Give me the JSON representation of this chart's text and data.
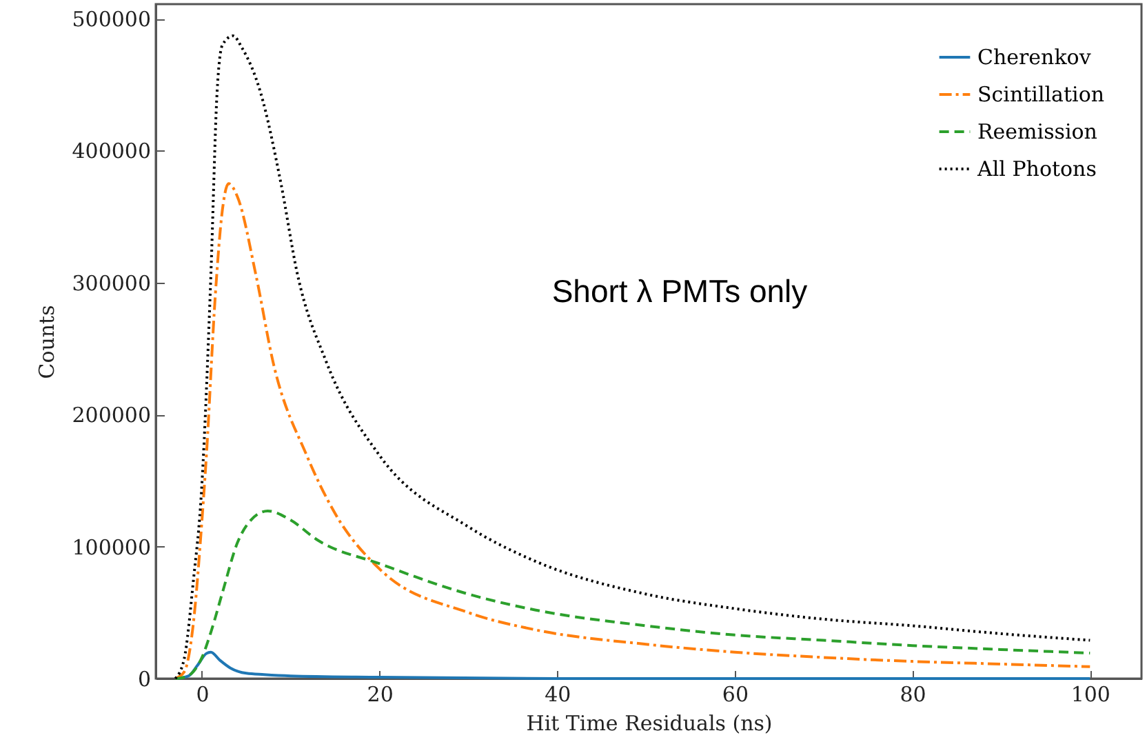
{
  "chart_data": {
    "type": "line",
    "xlabel": "Hit Time Residuals (ns)",
    "ylabel": "Counts",
    "xlim": [
      -5.2,
      105.8
    ],
    "ylim": [
      0,
      511000
    ],
    "xticks": [
      0,
      20,
      40,
      60,
      80,
      100
    ],
    "yticks": [
      0,
      100000,
      200000,
      300000,
      400000,
      500000
    ],
    "grid": false,
    "legend": "top right",
    "marker": "none",
    "annotations": [
      "Short λ PMTs only"
    ],
    "series": [
      {
        "name": "Cherenkov",
        "color": "#1f77b4",
        "line_style": "solid",
        "x": [
          -3,
          -1.5,
          -0.5,
          0.5,
          1,
          2,
          3.2,
          5,
          7,
          10,
          20,
          40,
          100
        ],
        "values": [
          0,
          2000,
          10000,
          19000,
          20000,
          14000,
          8000,
          4000,
          3000,
          2000,
          1000,
          0,
          0
        ]
      },
      {
        "name": "Scintillation",
        "color": "#ff7f0e",
        "line_style": "dashdot",
        "x": [
          -3,
          -2,
          -1,
          0,
          0.5,
          1.5,
          2.3,
          3,
          4,
          6.1,
          8,
          11.8,
          15,
          20,
          30,
          37.5,
          50,
          60,
          70,
          80,
          90,
          100
        ],
        "values": [
          0,
          5000,
          40000,
          120000,
          169000,
          290000,
          355000,
          375000,
          365000,
          305000,
          240000,
          169000,
          125000,
          83000,
          50000,
          37000,
          26000,
          20000,
          16000,
          13000,
          11000,
          9000
        ]
      },
      {
        "name": "Reemission",
        "color": "#2ca02c",
        "line_style": "dashed",
        "x": [
          -3,
          -2,
          -1,
          0,
          1,
          2.3,
          4,
          5.5,
          7.4,
          10,
          13,
          20,
          30,
          37.5,
          50,
          60,
          70,
          80,
          90,
          100
        ],
        "values": [
          0,
          1000,
          5000,
          16000,
          35000,
          65000,
          103000,
          120000,
          127000,
          120000,
          105000,
          87000,
          64000,
          52000,
          40000,
          33000,
          29000,
          25000,
          22000,
          19300
        ]
      },
      {
        "name": "All Photons",
        "color": "#000000",
        "line_style": "dotted",
        "x": [
          -3,
          -2,
          -1,
          0,
          1,
          1.7,
          2.3,
          3.5,
          4.5,
          6.6,
          8.9,
          10.7,
          14,
          20,
          30,
          37.5,
          50,
          60,
          70,
          80,
          90,
          100
        ],
        "values": [
          0,
          15000,
          72000,
          148000,
          305000,
          444000,
          480000,
          487000,
          478000,
          444000,
          375000,
          308000,
          240000,
          169000,
          115000,
          89000,
          64000,
          53000,
          45000,
          40000,
          34000,
          29000
        ]
      }
    ]
  }
}
